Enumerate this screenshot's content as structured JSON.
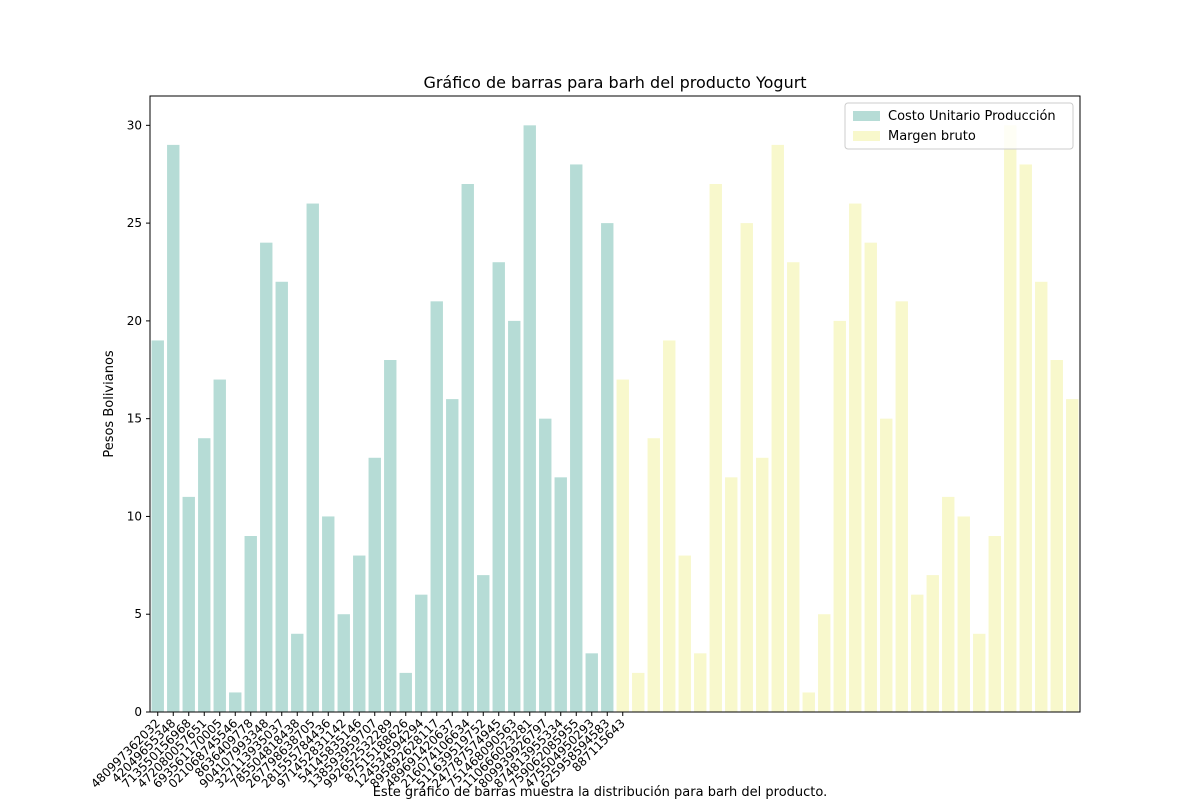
{
  "chart_data": {
    "type": "bar",
    "title": "Gráfico de barras para barh del producto Yogurt",
    "y_label": "Pesos Bolivianos",
    "caption": "Este gráfico de barras muestra la distribución para barh del producto.",
    "categories": [
      "480997362032",
      "42049655348",
      "713550156968",
      "472080057651",
      "693561170005",
      "021068745546",
      "8636409778",
      "904107993348",
      "327113935037",
      "785504818438",
      "267798638705",
      "281555784436",
      "971452831142",
      "54145835146",
      "138593959707",
      "992652532289",
      "87515188626",
      "124534594294",
      "895892628117",
      "489691420637",
      "216074106634",
      "511639519752",
      "247787574945",
      "751468090563",
      "110666023281",
      "809939926797",
      "874813955334",
      "759062085955",
      "475504950293",
      "625958594583",
      "887115643",
      null,
      null,
      null,
      null,
      null,
      null,
      null,
      null,
      null,
      null,
      null,
      null,
      null,
      null,
      null,
      null,
      null,
      null,
      null,
      null,
      null,
      null,
      null,
      null,
      null,
      null,
      null,
      null,
      null
    ],
    "series": [
      {
        "name": "Costo Unitario Producción",
        "color": "#b6dcd6",
        "values": [
          19,
          29,
          11,
          14,
          17,
          1,
          9,
          24,
          22,
          4,
          26,
          10,
          5,
          8,
          13,
          18,
          2,
          6,
          21,
          16,
          27,
          7,
          23,
          20,
          30,
          15,
          12,
          28,
          3,
          25,
          null,
          null,
          null,
          null,
          null,
          null,
          null,
          null,
          null,
          null,
          null,
          null,
          null,
          null,
          null,
          null,
          null,
          null,
          null,
          null,
          null,
          null,
          null,
          null,
          null,
          null,
          null,
          null,
          null,
          null
        ]
      },
      {
        "name": "Margen bruto",
        "color": "#f8f8cc",
        "values": [
          null,
          null,
          null,
          null,
          null,
          null,
          null,
          null,
          null,
          null,
          null,
          null,
          null,
          null,
          null,
          null,
          null,
          null,
          null,
          null,
          null,
          null,
          null,
          null,
          null,
          null,
          null,
          null,
          null,
          null,
          17,
          2,
          14,
          19,
          8,
          3,
          27,
          12,
          25,
          13,
          29,
          23,
          1,
          5,
          20,
          26,
          24,
          15,
          21,
          6,
          7,
          11,
          10,
          4,
          9,
          30,
          28,
          22,
          18,
          16
        ]
      }
    ],
    "ylim": [
      0,
      31.5
    ],
    "yticks": [
      0,
      5,
      10,
      15,
      20,
      25,
      30
    ],
    "legend": "upper right"
  }
}
